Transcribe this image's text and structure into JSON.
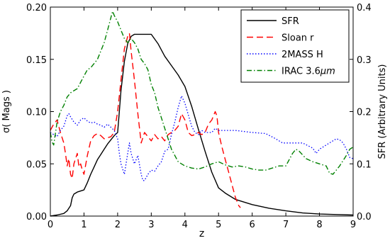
{
  "chart_data": {
    "type": "line",
    "xlabel": "z",
    "ylabel_left": "σ( Mags )",
    "ylabel_right": "SFR (Arbitrary Units)",
    "xlim": [
      0,
      9
    ],
    "ylim_left": [
      0,
      0.2
    ],
    "ylim_right": [
      0,
      0.4
    ],
    "x_ticks": [
      "0",
      "1",
      "2",
      "3",
      "4",
      "5",
      "6",
      "7",
      "8",
      "9"
    ],
    "y_ticks_left": [
      "0.00",
      "0.05",
      "0.10",
      "0.15",
      "0.20"
    ],
    "y_ticks_right": [
      "0.0",
      "0.1",
      "0.2",
      "0.3",
      "0.4"
    ],
    "grid": false,
    "legend_position": "top-right",
    "series": [
      {
        "name": "SFR",
        "legend_label": "SFR",
        "axis": "right",
        "color": "#000000",
        "dash": "solid",
        "points": [
          [
            0,
            0
          ],
          [
            0.2,
            0.002
          ],
          [
            0.4,
            0.005
          ],
          [
            0.5,
            0.01
          ],
          [
            0.6,
            0.02
          ],
          [
            0.65,
            0.035
          ],
          [
            0.7,
            0.042
          ],
          [
            0.8,
            0.046
          ],
          [
            0.9,
            0.048
          ],
          [
            1.0,
            0.05
          ],
          [
            1.1,
            0.064
          ],
          [
            1.2,
            0.08
          ],
          [
            1.3,
            0.094
          ],
          [
            1.4,
            0.108
          ],
          [
            1.5,
            0.118
          ],
          [
            1.6,
            0.128
          ],
          [
            1.7,
            0.138
          ],
          [
            1.8,
            0.146
          ],
          [
            1.9,
            0.154
          ],
          [
            2.0,
            0.16
          ],
          [
            2.05,
            0.2
          ],
          [
            2.1,
            0.24
          ],
          [
            2.2,
            0.296
          ],
          [
            2.3,
            0.33
          ],
          [
            2.4,
            0.344
          ],
          [
            2.5,
            0.348
          ],
          [
            3.0,
            0.348
          ],
          [
            3.2,
            0.33
          ],
          [
            3.4,
            0.306
          ],
          [
            3.6,
            0.288
          ],
          [
            3.8,
            0.27
          ],
          [
            4.0,
            0.248
          ],
          [
            4.2,
            0.21
          ],
          [
            4.4,
            0.166
          ],
          [
            4.6,
            0.124
          ],
          [
            4.8,
            0.084
          ],
          [
            5.0,
            0.054
          ],
          [
            5.2,
            0.044
          ],
          [
            5.5,
            0.032
          ],
          [
            6.0,
            0.022
          ],
          [
            6.5,
            0.015
          ],
          [
            7.0,
            0.01
          ],
          [
            7.5,
            0.006
          ],
          [
            8.0,
            0.004
          ],
          [
            8.5,
            0.003
          ],
          [
            9.0,
            0.002
          ]
        ]
      },
      {
        "name": "Sloan r",
        "legend_label": "Sloan r",
        "axis": "left",
        "color": "#ff0000",
        "dash": "9,5",
        "points": [
          [
            0,
            0.082
          ],
          [
            0.1,
            0.088
          ],
          [
            0.2,
            0.092
          ],
          [
            0.3,
            0.08
          ],
          [
            0.4,
            0.07
          ],
          [
            0.45,
            0.06
          ],
          [
            0.5,
            0.048
          ],
          [
            0.55,
            0.055
          ],
          [
            0.6,
            0.04
          ],
          [
            0.65,
            0.036
          ],
          [
            0.7,
            0.05
          ],
          [
            0.8,
            0.06
          ],
          [
            0.85,
            0.047
          ],
          [
            0.9,
            0.05
          ],
          [
            0.95,
            0.044
          ],
          [
            1.0,
            0.04
          ],
          [
            1.1,
            0.058
          ],
          [
            1.2,
            0.072
          ],
          [
            1.3,
            0.077
          ],
          [
            1.4,
            0.079
          ],
          [
            1.5,
            0.077
          ],
          [
            1.6,
            0.074
          ],
          [
            1.7,
            0.075
          ],
          [
            1.8,
            0.076
          ],
          [
            1.9,
            0.08
          ],
          [
            2.0,
            0.1
          ],
          [
            2.1,
            0.13
          ],
          [
            2.2,
            0.16
          ],
          [
            2.3,
            0.172
          ],
          [
            2.35,
            0.175
          ],
          [
            2.4,
            0.158
          ],
          [
            2.5,
            0.13
          ],
          [
            2.6,
            0.098
          ],
          [
            2.7,
            0.07
          ],
          [
            2.8,
            0.08
          ],
          [
            2.9,
            0.076
          ],
          [
            3.0,
            0.072
          ],
          [
            3.1,
            0.078
          ],
          [
            3.2,
            0.074
          ],
          [
            3.3,
            0.076
          ],
          [
            3.4,
            0.072
          ],
          [
            3.5,
            0.078
          ],
          [
            3.6,
            0.08
          ],
          [
            3.7,
            0.082
          ],
          [
            3.8,
            0.086
          ],
          [
            3.9,
            0.098
          ],
          [
            4.0,
            0.092
          ],
          [
            4.1,
            0.08
          ],
          [
            4.2,
            0.077
          ],
          [
            4.3,
            0.078
          ],
          [
            4.4,
            0.08
          ],
          [
            4.5,
            0.078
          ],
          [
            4.6,
            0.08
          ],
          [
            4.7,
            0.088
          ],
          [
            4.8,
            0.092
          ],
          [
            4.9,
            0.1
          ],
          [
            4.95,
            0.096
          ],
          [
            5.0,
            0.08
          ],
          [
            5.1,
            0.066
          ],
          [
            5.2,
            0.054
          ],
          [
            5.3,
            0.042
          ],
          [
            5.4,
            0.03
          ],
          [
            5.5,
            0.018
          ],
          [
            5.6,
            0.01
          ],
          [
            5.65,
            0.008
          ]
        ]
      },
      {
        "name": "2MASS H",
        "legend_label": "2MASS H",
        "axis": "left",
        "color": "#0000ff",
        "dash": "1.5,2.5",
        "points": [
          [
            0,
            0.08
          ],
          [
            0.2,
            0.076
          ],
          [
            0.3,
            0.082
          ],
          [
            0.4,
            0.086
          ],
          [
            0.5,
            0.096
          ],
          [
            0.55,
            0.098
          ],
          [
            0.6,
            0.095
          ],
          [
            0.7,
            0.09
          ],
          [
            0.8,
            0.087
          ],
          [
            0.9,
            0.092
          ],
          [
            1.0,
            0.094
          ],
          [
            1.1,
            0.091
          ],
          [
            1.2,
            0.089
          ],
          [
            1.3,
            0.09
          ],
          [
            1.4,
            0.088
          ],
          [
            1.5,
            0.087
          ],
          [
            1.6,
            0.085
          ],
          [
            1.7,
            0.088
          ],
          [
            1.8,
            0.085
          ],
          [
            1.9,
            0.082
          ],
          [
            2.0,
            0.074
          ],
          [
            2.05,
            0.06
          ],
          [
            2.1,
            0.05
          ],
          [
            2.2,
            0.04
          ],
          [
            2.3,
            0.06
          ],
          [
            2.35,
            0.07
          ],
          [
            2.4,
            0.06
          ],
          [
            2.5,
            0.05
          ],
          [
            2.6,
            0.058
          ],
          [
            2.7,
            0.04
          ],
          [
            2.75,
            0.034
          ],
          [
            2.8,
            0.034
          ],
          [
            2.9,
            0.04
          ],
          [
            3.0,
            0.044
          ],
          [
            3.1,
            0.043
          ],
          [
            3.2,
            0.048
          ],
          [
            3.3,
            0.052
          ],
          [
            3.4,
            0.062
          ],
          [
            3.5,
            0.064
          ],
          [
            3.6,
            0.078
          ],
          [
            3.7,
            0.09
          ],
          [
            3.8,
            0.104
          ],
          [
            3.9,
            0.115
          ],
          [
            4.0,
            0.108
          ],
          [
            4.1,
            0.097
          ],
          [
            4.2,
            0.086
          ],
          [
            4.3,
            0.08
          ],
          [
            4.4,
            0.078
          ],
          [
            4.5,
            0.082
          ],
          [
            4.6,
            0.08
          ],
          [
            4.8,
            0.08
          ],
          [
            4.9,
            0.084
          ],
          [
            5.0,
            0.082
          ],
          [
            5.5,
            0.082
          ],
          [
            6.0,
            0.08
          ],
          [
            6.4,
            0.079
          ],
          [
            6.7,
            0.074
          ],
          [
            6.9,
            0.07
          ],
          [
            7.0,
            0.07
          ],
          [
            7.5,
            0.07
          ],
          [
            7.8,
            0.065
          ],
          [
            7.9,
            0.06
          ],
          [
            8.0,
            0.064
          ],
          [
            8.2,
            0.068
          ],
          [
            8.4,
            0.072
          ],
          [
            8.5,
            0.074
          ],
          [
            8.6,
            0.073
          ],
          [
            8.7,
            0.07
          ],
          [
            8.8,
            0.064
          ],
          [
            8.9,
            0.056
          ],
          [
            9.0,
            0.055
          ]
        ]
      },
      {
        "name": "IRAC 3.6μm",
        "legend_label": "IRAC 3.6",
        "legend_unit": "μm",
        "axis": "left",
        "color": "#008000",
        "dash": "7,3,1.5,3",
        "points": [
          [
            0,
            0.08
          ],
          [
            0.05,
            0.071
          ],
          [
            0.1,
            0.068
          ],
          [
            0.2,
            0.09
          ],
          [
            0.3,
            0.1
          ],
          [
            0.4,
            0.106
          ],
          [
            0.5,
            0.114
          ],
          [
            0.6,
            0.118
          ],
          [
            0.7,
            0.12
          ],
          [
            0.8,
            0.122
          ],
          [
            0.9,
            0.128
          ],
          [
            1.0,
            0.134
          ],
          [
            1.1,
            0.14
          ],
          [
            1.2,
            0.142
          ],
          [
            1.3,
            0.146
          ],
          [
            1.4,
            0.15
          ],
          [
            1.5,
            0.158
          ],
          [
            1.6,
            0.166
          ],
          [
            1.7,
            0.178
          ],
          [
            1.8,
            0.19
          ],
          [
            1.85,
            0.196
          ],
          [
            1.9,
            0.192
          ],
          [
            2.0,
            0.186
          ],
          [
            2.1,
            0.178
          ],
          [
            2.2,
            0.17
          ],
          [
            2.3,
            0.166
          ],
          [
            2.4,
            0.17
          ],
          [
            2.5,
            0.166
          ],
          [
            2.6,
            0.16
          ],
          [
            2.7,
            0.15
          ],
          [
            2.8,
            0.146
          ],
          [
            2.9,
            0.14
          ],
          [
            3.0,
            0.126
          ],
          [
            3.1,
            0.118
          ],
          [
            3.2,
            0.104
          ],
          [
            3.3,
            0.094
          ],
          [
            3.4,
            0.084
          ],
          [
            3.5,
            0.074
          ],
          [
            3.6,
            0.064
          ],
          [
            3.7,
            0.058
          ],
          [
            3.8,
            0.052
          ],
          [
            3.9,
            0.05
          ],
          [
            4.0,
            0.048
          ],
          [
            4.2,
            0.046
          ],
          [
            4.4,
            0.045
          ],
          [
            4.6,
            0.047
          ],
          [
            4.8,
            0.05
          ],
          [
            5.0,
            0.052
          ],
          [
            5.2,
            0.049
          ],
          [
            5.4,
            0.047
          ],
          [
            5.6,
            0.048
          ],
          [
            5.8,
            0.047
          ],
          [
            6.0,
            0.045
          ],
          [
            6.2,
            0.044
          ],
          [
            6.4,
            0.044
          ],
          [
            6.6,
            0.046
          ],
          [
            6.8,
            0.048
          ],
          [
            7.0,
            0.048
          ],
          [
            7.2,
            0.06
          ],
          [
            7.3,
            0.064
          ],
          [
            7.4,
            0.062
          ],
          [
            7.6,
            0.055
          ],
          [
            7.8,
            0.052
          ],
          [
            8.0,
            0.05
          ],
          [
            8.2,
            0.048
          ],
          [
            8.3,
            0.041
          ],
          [
            8.4,
            0.04
          ],
          [
            8.6,
            0.048
          ],
          [
            8.8,
            0.058
          ],
          [
            8.9,
            0.064
          ],
          [
            9.0,
            0.066
          ]
        ]
      }
    ]
  }
}
